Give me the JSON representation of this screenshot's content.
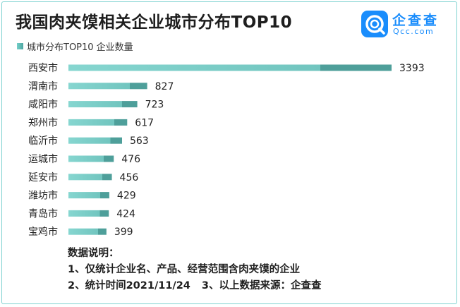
{
  "title": "我国肉夹馍相关企业城市分布TOP10",
  "logo": {
    "name": "企查查",
    "domain": "Qcc.com"
  },
  "colors": {
    "bar_light": "#7fd3cd",
    "bar_dark": "#4e9f9a",
    "brand": "#1a8dfc"
  },
  "chart_data": {
    "type": "bar",
    "orientation": "horizontal",
    "categories": [
      "西安市",
      "渭南市",
      "咸阳市",
      "郑州市",
      "临沂市",
      "运城市",
      "延安市",
      "潍坊市",
      "青岛市",
      "宝鸡市"
    ],
    "series": [
      {
        "name": "城市分布TOP10 企业数量",
        "values": [
          3393,
          827,
          723,
          617,
          563,
          476,
          456,
          429,
          424,
          399
        ]
      }
    ],
    "data_labels": [
      "3393",
      "827",
      "723",
      "617",
      "563",
      "476",
      "456",
      "429",
      "424",
      "399"
    ],
    "xlim": [
      0,
      3393
    ],
    "grid": false,
    "legend_position": "top-left"
  },
  "notes": {
    "heading": "数据说明：",
    "line1": "1、仅统计企业名、产品、经营范围含肉夹馍的企业",
    "line2a": "2、统计时间2021/11/24",
    "line2b": "3、以上数据来源：企查查"
  }
}
